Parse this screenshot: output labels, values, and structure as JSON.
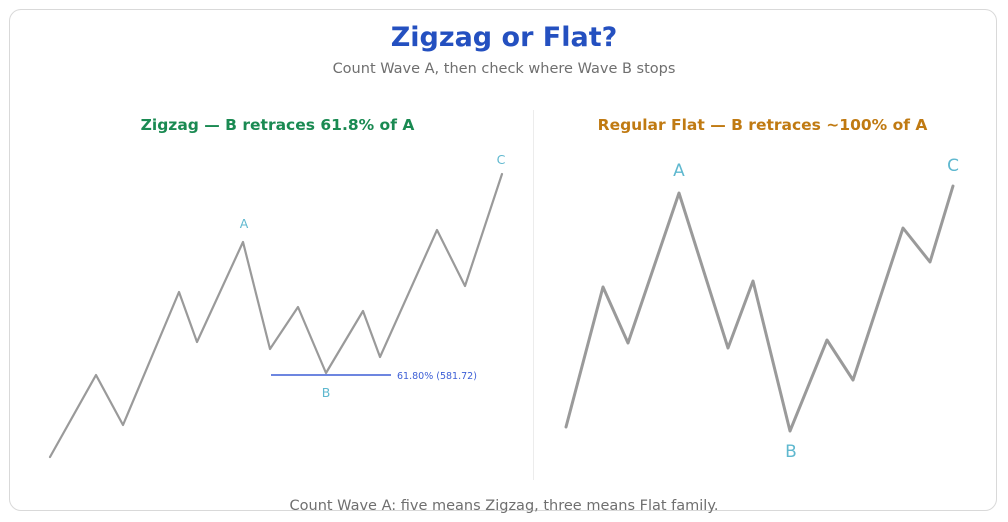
{
  "title": "Zigzag or Flat?",
  "subtitle": "Count Wave A, then check where Wave B stops",
  "footer": "Count Wave A: five means Zigzag, three means Flat family.",
  "colors": {
    "title": "#2450c0",
    "zigzag_title": "#1a8a52",
    "flat_title": "#c07a12",
    "wave_line": "#9a9a9a",
    "wave_labels": "#5fb8cf",
    "fib_line": "#3d5fd6"
  },
  "panels": {
    "zigzag": {
      "title": "Zigzag — B retraces 61.8% of A",
      "labels": {
        "a": "A",
        "b": "B",
        "c": "C"
      },
      "fib_label": "61.80% (581.72)"
    },
    "flat": {
      "title": "Regular Flat — B retraces ~100% of A",
      "labels": {
        "a": "A",
        "b": "B",
        "c": "C"
      }
    }
  }
}
